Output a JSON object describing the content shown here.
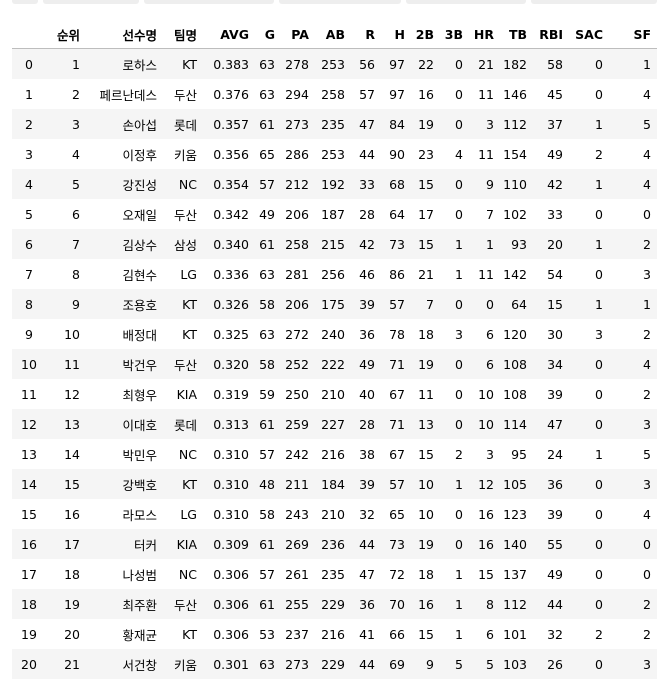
{
  "columns": [
    "",
    "순위",
    "선수명",
    "팀명",
    "AVG",
    "G",
    "PA",
    "AB",
    "R",
    "H",
    "2B",
    "3B",
    "HR",
    "TB",
    "RBI",
    "SAC",
    "SF"
  ],
  "rows": [
    [
      "0",
      "1",
      "로하스",
      "KT",
      "0.383",
      "63",
      "278",
      "253",
      "56",
      "97",
      "22",
      "0",
      "21",
      "182",
      "58",
      "0",
      "1"
    ],
    [
      "1",
      "2",
      "페르난데스",
      "두산",
      "0.376",
      "63",
      "294",
      "258",
      "57",
      "97",
      "16",
      "0",
      "11",
      "146",
      "45",
      "0",
      "4"
    ],
    [
      "2",
      "3",
      "손아섭",
      "롯데",
      "0.357",
      "61",
      "273",
      "235",
      "47",
      "84",
      "19",
      "0",
      "3",
      "112",
      "37",
      "1",
      "5"
    ],
    [
      "3",
      "4",
      "이정후",
      "키움",
      "0.356",
      "65",
      "286",
      "253",
      "44",
      "90",
      "23",
      "4",
      "11",
      "154",
      "49",
      "2",
      "4"
    ],
    [
      "4",
      "5",
      "강진성",
      "NC",
      "0.354",
      "57",
      "212",
      "192",
      "33",
      "68",
      "15",
      "0",
      "9",
      "110",
      "42",
      "1",
      "4"
    ],
    [
      "5",
      "6",
      "오재일",
      "두산",
      "0.342",
      "49",
      "206",
      "187",
      "28",
      "64",
      "17",
      "0",
      "7",
      "102",
      "33",
      "0",
      "0"
    ],
    [
      "6",
      "7",
      "김상수",
      "삼성",
      "0.340",
      "61",
      "258",
      "215",
      "42",
      "73",
      "15",
      "1",
      "1",
      "93",
      "20",
      "1",
      "2"
    ],
    [
      "7",
      "8",
      "김현수",
      "LG",
      "0.336",
      "63",
      "281",
      "256",
      "46",
      "86",
      "21",
      "1",
      "11",
      "142",
      "54",
      "0",
      "3"
    ],
    [
      "8",
      "9",
      "조용호",
      "KT",
      "0.326",
      "58",
      "206",
      "175",
      "39",
      "57",
      "7",
      "0",
      "0",
      "64",
      "15",
      "1",
      "1"
    ],
    [
      "9",
      "10",
      "배정대",
      "KT",
      "0.325",
      "63",
      "272",
      "240",
      "36",
      "78",
      "18",
      "3",
      "6",
      "120",
      "30",
      "3",
      "2"
    ],
    [
      "10",
      "11",
      "박건우",
      "두산",
      "0.320",
      "58",
      "252",
      "222",
      "49",
      "71",
      "19",
      "0",
      "6",
      "108",
      "34",
      "0",
      "4"
    ],
    [
      "11",
      "12",
      "최형우",
      "KIA",
      "0.319",
      "59",
      "250",
      "210",
      "40",
      "67",
      "11",
      "0",
      "10",
      "108",
      "39",
      "0",
      "2"
    ],
    [
      "12",
      "13",
      "이대호",
      "롯데",
      "0.313",
      "61",
      "259",
      "227",
      "28",
      "71",
      "13",
      "0",
      "10",
      "114",
      "47",
      "0",
      "3"
    ],
    [
      "13",
      "14",
      "박민우",
      "NC",
      "0.310",
      "57",
      "242",
      "216",
      "38",
      "67",
      "15",
      "2",
      "3",
      "95",
      "24",
      "1",
      "5"
    ],
    [
      "14",
      "15",
      "강백호",
      "KT",
      "0.310",
      "48",
      "211",
      "184",
      "39",
      "57",
      "10",
      "1",
      "12",
      "105",
      "36",
      "0",
      "3"
    ],
    [
      "15",
      "16",
      "라모스",
      "LG",
      "0.310",
      "58",
      "243",
      "210",
      "32",
      "65",
      "10",
      "0",
      "16",
      "123",
      "39",
      "0",
      "4"
    ],
    [
      "16",
      "17",
      "터커",
      "KIA",
      "0.309",
      "61",
      "269",
      "236",
      "44",
      "73",
      "19",
      "0",
      "16",
      "140",
      "55",
      "0",
      "0"
    ],
    [
      "17",
      "18",
      "나성범",
      "NC",
      "0.306",
      "57",
      "261",
      "235",
      "47",
      "72",
      "18",
      "1",
      "15",
      "137",
      "49",
      "0",
      "0"
    ],
    [
      "18",
      "19",
      "최주환",
      "두산",
      "0.306",
      "61",
      "255",
      "229",
      "36",
      "70",
      "16",
      "1",
      "8",
      "112",
      "44",
      "0",
      "2"
    ],
    [
      "19",
      "20",
      "황재균",
      "KT",
      "0.306",
      "53",
      "237",
      "216",
      "41",
      "66",
      "15",
      "1",
      "6",
      "101",
      "32",
      "2",
      "2"
    ],
    [
      "20",
      "21",
      "서건창",
      "키움",
      "0.301",
      "63",
      "273",
      "229",
      "44",
      "69",
      "9",
      "5",
      "5",
      "103",
      "26",
      "0",
      "3"
    ]
  ]
}
